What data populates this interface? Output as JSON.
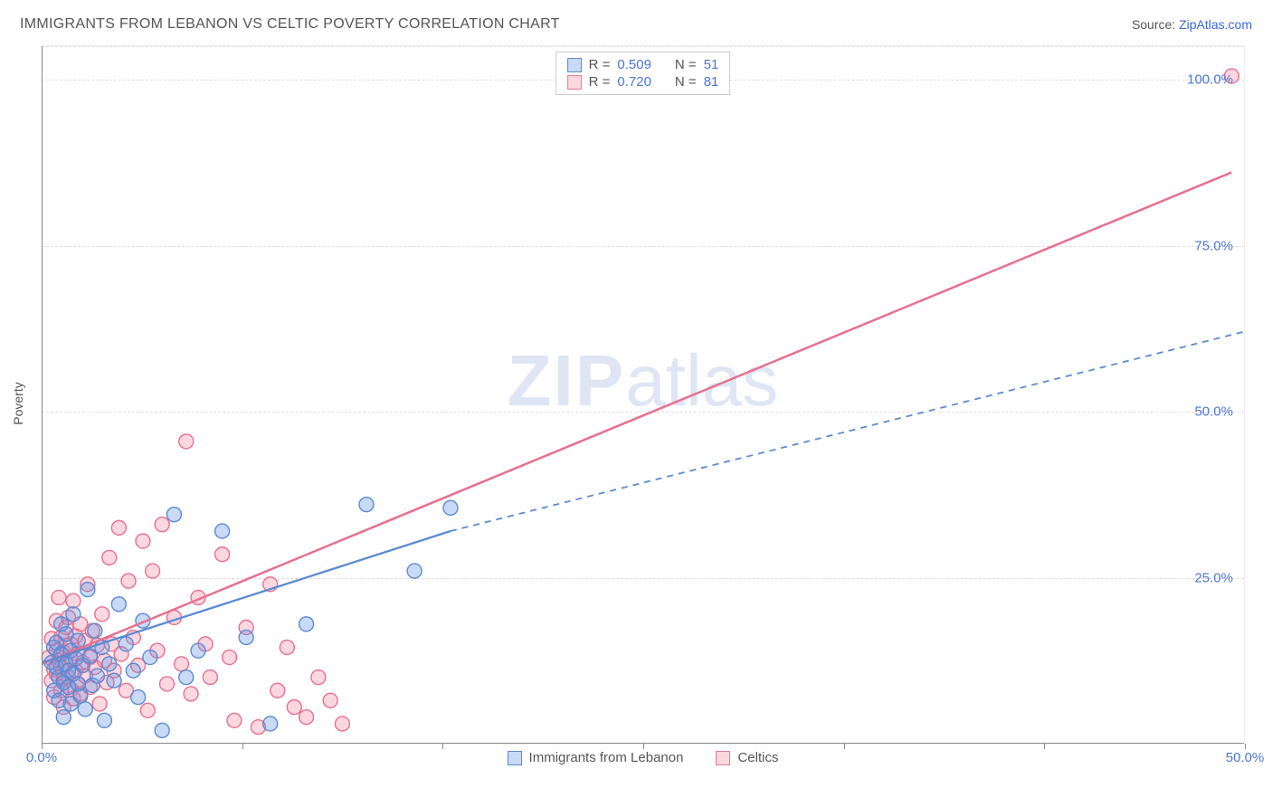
{
  "header": {
    "title": "IMMIGRANTS FROM LEBANON VS CELTIC POVERTY CORRELATION CHART",
    "source_prefix": "Source: ",
    "source_link": "ZipAtlas.com"
  },
  "axes": {
    "ylabel": "Poverty",
    "x_min": 0,
    "x_max": 50,
    "y_min": 0,
    "y_max": 105,
    "x_ticks": [
      0,
      8.33,
      16.67,
      25,
      33.33,
      41.67,
      50
    ],
    "x_tick_labels": {
      "0": "0.0%",
      "50": "50.0%"
    },
    "y_gridlines": [
      25,
      50,
      75,
      100,
      105
    ],
    "y_tick_labels": {
      "25": "25.0%",
      "50": "50.0%",
      "75": "75.0%",
      "100": "100.0%"
    },
    "grid_color": "#dddddd",
    "axis_color": "#888888",
    "tick_label_color": "#4a76d4"
  },
  "legend_top": {
    "rows": [
      {
        "swatch": "blue",
        "r_label": "R =",
        "r_value": "0.509",
        "n_label": "N =",
        "n_value": "51"
      },
      {
        "swatch": "pink",
        "r_label": "R =",
        "r_value": "0.720",
        "n_label": "N =",
        "n_value": "81"
      }
    ]
  },
  "legend_bottom": {
    "items": [
      {
        "swatch": "blue",
        "label": "Immigrants from Lebanon"
      },
      {
        "swatch": "pink",
        "label": "Celtics"
      }
    ]
  },
  "watermark": {
    "zip": "ZIP",
    "atlas": "atlas"
  },
  "series": {
    "blue": {
      "color_stroke": "#5a8ad4",
      "color_fill": "rgba(99,148,230,0.35)",
      "marker_r": 8,
      "points": [
        [
          0.4,
          12.2
        ],
        [
          0.5,
          14.5
        ],
        [
          0.5,
          8.0
        ],
        [
          0.6,
          11.5
        ],
        [
          0.6,
          15.2
        ],
        [
          0.7,
          6.5
        ],
        [
          0.7,
          10.0
        ],
        [
          0.8,
          13.5
        ],
        [
          0.8,
          18.0
        ],
        [
          0.9,
          9.2
        ],
        [
          0.9,
          4.0
        ],
        [
          1.0,
          12.0
        ],
        [
          1.0,
          16.5
        ],
        [
          1.1,
          8.5
        ],
        [
          1.1,
          11.0
        ],
        [
          1.2,
          14.0
        ],
        [
          1.2,
          6.0
        ],
        [
          1.3,
          10.5
        ],
        [
          1.3,
          19.5
        ],
        [
          1.4,
          12.8
        ],
        [
          1.5,
          9.0
        ],
        [
          1.5,
          15.5
        ],
        [
          1.6,
          7.2
        ],
        [
          1.7,
          11.8
        ],
        [
          1.8,
          5.2
        ],
        [
          1.9,
          23.2
        ],
        [
          2.0,
          13.2
        ],
        [
          2.1,
          8.8
        ],
        [
          2.2,
          17.0
        ],
        [
          2.3,
          10.2
        ],
        [
          2.5,
          14.5
        ],
        [
          2.6,
          3.5
        ],
        [
          2.8,
          12.0
        ],
        [
          3.0,
          9.5
        ],
        [
          3.2,
          21.0
        ],
        [
          3.5,
          15.0
        ],
        [
          3.8,
          11.0
        ],
        [
          4.0,
          7.0
        ],
        [
          4.2,
          18.5
        ],
        [
          4.5,
          13.0
        ],
        [
          5.0,
          2.0
        ],
        [
          5.5,
          34.5
        ],
        [
          6.0,
          10.0
        ],
        [
          6.5,
          14.0
        ],
        [
          7.5,
          32.0
        ],
        [
          8.5,
          16.0
        ],
        [
          9.5,
          3.0
        ],
        [
          11.0,
          18.0
        ],
        [
          13.5,
          36.0
        ],
        [
          15.5,
          26.0
        ],
        [
          17.0,
          35.5
        ]
      ],
      "trend": {
        "x1": 0,
        "y1": 12.2,
        "x2": 17,
        "y2": 32,
        "style": "solid",
        "width": 2.3
      },
      "trend_ext": {
        "x1": 17,
        "y1": 32,
        "x2": 50,
        "y2": 62,
        "style": "dashed",
        "width": 1.8
      }
    },
    "pink": {
      "color_stroke": "#e86f8e",
      "color_fill": "rgba(245,140,165,0.35)",
      "marker_r": 8,
      "points": [
        [
          0.3,
          13.0
        ],
        [
          0.4,
          9.5
        ],
        [
          0.4,
          15.8
        ],
        [
          0.5,
          11.2
        ],
        [
          0.5,
          7.0
        ],
        [
          0.6,
          14.0
        ],
        [
          0.6,
          18.5
        ],
        [
          0.6,
          10.5
        ],
        [
          0.7,
          12.5
        ],
        [
          0.7,
          22.0
        ],
        [
          0.8,
          8.0
        ],
        [
          0.8,
          16.0
        ],
        [
          0.8,
          11.5
        ],
        [
          0.9,
          13.8
        ],
        [
          0.9,
          5.5
        ],
        [
          0.9,
          9.8
        ],
        [
          1.0,
          17.5
        ],
        [
          1.0,
          12.0
        ],
        [
          1.0,
          14.8
        ],
        [
          1.1,
          10.0
        ],
        [
          1.1,
          19.0
        ],
        [
          1.2,
          8.2
        ],
        [
          1.2,
          15.0
        ],
        [
          1.2,
          12.8
        ],
        [
          1.3,
          6.8
        ],
        [
          1.3,
          21.5
        ],
        [
          1.4,
          11.0
        ],
        [
          1.4,
          16.2
        ],
        [
          1.5,
          9.0
        ],
        [
          1.5,
          13.5
        ],
        [
          1.6,
          18.0
        ],
        [
          1.6,
          7.5
        ],
        [
          1.7,
          12.2
        ],
        [
          1.8,
          15.5
        ],
        [
          1.8,
          10.2
        ],
        [
          1.9,
          24.0
        ],
        [
          2.0,
          13.0
        ],
        [
          2.0,
          8.5
        ],
        [
          2.1,
          17.0
        ],
        [
          2.2,
          11.5
        ],
        [
          2.3,
          14.8
        ],
        [
          2.4,
          6.0
        ],
        [
          2.5,
          19.5
        ],
        [
          2.6,
          12.5
        ],
        [
          2.7,
          9.2
        ],
        [
          2.8,
          28.0
        ],
        [
          2.9,
          15.0
        ],
        [
          3.0,
          11.0
        ],
        [
          3.2,
          32.5
        ],
        [
          3.3,
          13.5
        ],
        [
          3.5,
          8.0
        ],
        [
          3.6,
          24.5
        ],
        [
          3.8,
          16.0
        ],
        [
          4.0,
          11.8
        ],
        [
          4.2,
          30.5
        ],
        [
          4.4,
          5.0
        ],
        [
          4.6,
          26.0
        ],
        [
          4.8,
          14.0
        ],
        [
          5.0,
          33.0
        ],
        [
          5.2,
          9.0
        ],
        [
          5.5,
          19.0
        ],
        [
          5.8,
          12.0
        ],
        [
          6.0,
          45.5
        ],
        [
          6.2,
          7.5
        ],
        [
          6.5,
          22.0
        ],
        [
          6.8,
          15.0
        ],
        [
          7.0,
          10.0
        ],
        [
          7.5,
          28.5
        ],
        [
          7.8,
          13.0
        ],
        [
          8.0,
          3.5
        ],
        [
          8.5,
          17.5
        ],
        [
          9.0,
          2.5
        ],
        [
          9.5,
          24.0
        ],
        [
          9.8,
          8.0
        ],
        [
          10.2,
          14.5
        ],
        [
          10.5,
          5.5
        ],
        [
          11.0,
          4.0
        ],
        [
          11.5,
          10.0
        ],
        [
          12.0,
          6.5
        ],
        [
          12.5,
          3.0
        ],
        [
          49.5,
          100.5
        ]
      ],
      "trend": {
        "x1": 0,
        "y1": 12.0,
        "x2": 49.5,
        "y2": 86,
        "style": "solid",
        "width": 2.5
      }
    }
  },
  "chart_style": {
    "background_color": "#ffffff",
    "title_color": "#555558",
    "title_fontsize": 16,
    "label_fontsize": 14,
    "tick_fontsize": 15
  }
}
